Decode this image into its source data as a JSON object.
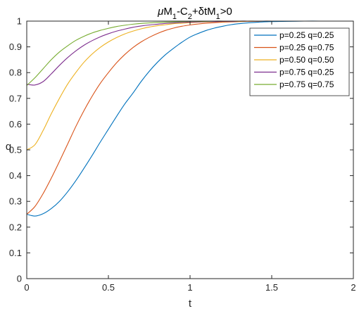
{
  "chart_data": {
    "type": "line",
    "title": {
      "mu": "μ",
      "M1": "M",
      "sub1": "1",
      "minusC": "-C",
      "sub2": "2",
      "plusDelta": "+δ",
      "tM": "tM",
      "sub3": "1",
      "tail": ">0"
    },
    "xlabel": "t",
    "ylabel": "q",
    "xlim": [
      0,
      2
    ],
    "ylim": [
      0,
      1
    ],
    "xticks": [
      0,
      0.5,
      1,
      1.5,
      2
    ],
    "xtick_labels": [
      "0",
      "0.5",
      "1",
      "1.5",
      "2"
    ],
    "yticks": [
      0,
      0.1,
      0.2,
      0.3,
      0.4,
      0.5,
      0.6,
      0.7,
      0.8,
      0.9,
      1
    ],
    "ytick_labels": [
      "0",
      "0.1",
      "0.2",
      "0.3",
      "0.4",
      "0.5",
      "0.6",
      "0.7",
      "0.8",
      "0.9",
      "1"
    ],
    "grid": false,
    "legend_position": "top-right",
    "x": [
      0,
      0.05,
      0.1,
      0.15,
      0.2,
      0.25,
      0.3,
      0.35,
      0.4,
      0.45,
      0.5,
      0.55,
      0.6,
      0.65,
      0.7,
      0.75,
      0.8,
      0.85,
      0.9,
      0.95,
      1.0,
      1.05,
      1.1,
      1.15,
      1.2,
      1.25,
      1.3,
      1.35,
      1.4,
      1.45,
      1.5,
      1.6,
      1.7,
      1.8,
      1.9,
      2.0
    ],
    "series": [
      {
        "name": "p=0.25 q=0.25",
        "color": "#0072BD",
        "values": [
          0.25,
          0.243,
          0.252,
          0.272,
          0.3,
          0.337,
          0.38,
          0.428,
          0.478,
          0.53,
          0.58,
          0.63,
          0.678,
          0.72,
          0.765,
          0.805,
          0.84,
          0.87,
          0.895,
          0.918,
          0.938,
          0.952,
          0.964,
          0.973,
          0.98,
          0.986,
          0.99,
          0.993,
          0.995,
          0.997,
          0.998,
          0.999,
          1.0,
          1.0,
          1.0,
          1.0
        ]
      },
      {
        "name": "p=0.25 q=0.75",
        "color": "#D95319",
        "values": [
          0.25,
          0.28,
          0.33,
          0.39,
          0.455,
          0.522,
          0.59,
          0.652,
          0.708,
          0.758,
          0.8,
          0.838,
          0.87,
          0.897,
          0.919,
          0.937,
          0.952,
          0.964,
          0.973,
          0.98,
          0.985,
          0.989,
          0.992,
          0.994,
          0.996,
          0.997,
          0.998,
          0.999,
          0.999,
          1.0,
          1.0,
          1.0,
          1.0,
          1.0,
          1.0,
          1.0
        ]
      },
      {
        "name": "p=0.50 q=0.50",
        "color": "#EDB120",
        "values": [
          0.5,
          0.52,
          0.575,
          0.64,
          0.7,
          0.755,
          0.8,
          0.84,
          0.872,
          0.898,
          0.919,
          0.936,
          0.95,
          0.961,
          0.97,
          0.977,
          0.982,
          0.986,
          0.99,
          0.992,
          0.994,
          0.996,
          0.997,
          0.998,
          0.998,
          0.999,
          0.999,
          1.0,
          1.0,
          1.0,
          1.0,
          1.0,
          1.0,
          1.0,
          1.0,
          1.0
        ]
      },
      {
        "name": "p=0.75 q=0.25",
        "color": "#7E2F8E",
        "values": [
          0.755,
          0.752,
          0.765,
          0.795,
          0.828,
          0.858,
          0.884,
          0.906,
          0.924,
          0.939,
          0.951,
          0.961,
          0.969,
          0.976,
          0.981,
          0.985,
          0.988,
          0.991,
          0.993,
          0.995,
          0.996,
          0.997,
          0.998,
          0.998,
          0.999,
          0.999,
          1.0,
          1.0,
          1.0,
          1.0,
          1.0,
          1.0,
          1.0,
          1.0,
          1.0,
          1.0
        ]
      },
      {
        "name": "p=0.75 q=0.75",
        "color": "#77AC30",
        "values": [
          0.75,
          0.78,
          0.815,
          0.85,
          0.88,
          0.904,
          0.925,
          0.941,
          0.954,
          0.964,
          0.972,
          0.979,
          0.984,
          0.988,
          0.991,
          0.993,
          0.995,
          0.996,
          0.997,
          0.998,
          0.999,
          0.999,
          0.999,
          1.0,
          1.0,
          1.0,
          1.0,
          1.0,
          1.0,
          1.0,
          1.0,
          1.0,
          1.0,
          1.0,
          1.0,
          1.0
        ]
      }
    ]
  }
}
